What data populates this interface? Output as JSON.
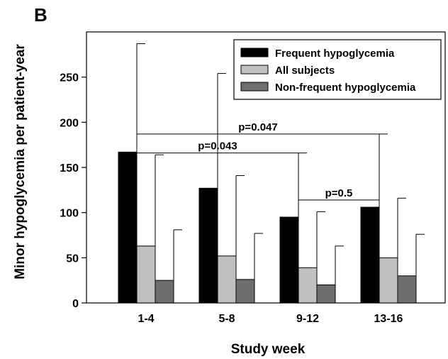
{
  "chart_data": {
    "type": "bar",
    "panel_label": "B",
    "ylabel": "Minor hypoglycemia per patient-year",
    "xlabel": "Study week",
    "categories": [
      "1-4",
      "5-8",
      "9-12",
      "13-16"
    ],
    "ylim": [
      0,
      300
    ],
    "yticks": [
      0,
      50,
      100,
      150,
      200,
      250
    ],
    "grid": false,
    "legend_position": "top-right",
    "series": [
      {
        "name": "Frequent hypoglycemia",
        "color": "#000000",
        "values": [
          167,
          127,
          95,
          106
        ],
        "error_upper": [
          287,
          254,
          166,
          187
        ]
      },
      {
        "name": "All subjects",
        "color": "#c0c0c0",
        "values": [
          63,
          52,
          39,
          50
        ],
        "error_upper": [
          164,
          141,
          101,
          116
        ]
      },
      {
        "name": "Non-frequent hypoglycemia",
        "color": "#6e6e6e",
        "values": [
          25,
          26,
          20,
          30
        ],
        "error_upper": [
          81,
          77,
          63,
          76
        ]
      }
    ],
    "annotations": [
      {
        "text": "p=0.047",
        "from_category": 0,
        "to_category": 3,
        "y": 187
      },
      {
        "text": "p=0.043",
        "from_category": 0,
        "to_category": 2,
        "y": 166
      },
      {
        "text": "p=0.5",
        "from_category": 2,
        "to_category": 3,
        "y": 114
      }
    ]
  }
}
